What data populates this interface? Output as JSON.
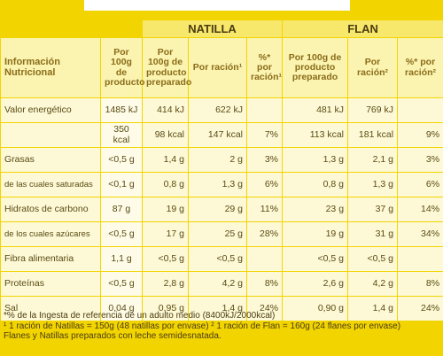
{
  "headers": {
    "natilla": "NATILLA",
    "flan": "FLAN",
    "label": "Información Nutricional",
    "cols": [
      "Por 100g de producto",
      "Por 100g de producto preparado",
      "Por ración¹",
      "%* por ración¹",
      "Por 100g de producto preparado",
      "Por ración²",
      "%* por ración²"
    ]
  },
  "rows": [
    {
      "label": "Valor energético",
      "cells": [
        "1485 kJ",
        "414 kJ",
        "622 kJ",
        "",
        "481 kJ",
        "769 kJ",
        ""
      ]
    },
    {
      "label": "",
      "cells": [
        "350 kcal",
        "98 kcal",
        "147 kcal",
        "7%",
        "113 kcal",
        "181 kcal",
        "9%"
      ]
    },
    {
      "label": "Grasas",
      "cells": [
        "<0,5 g",
        "1,4 g",
        "2 g",
        "3%",
        "1,3 g",
        "2,1 g",
        "3%"
      ]
    },
    {
      "label": "de las cuales saturadas",
      "cells": [
        "<0,1 g",
        "0,8 g",
        "1,3 g",
        "6%",
        "0,8 g",
        "1,3 g",
        "6%"
      ]
    },
    {
      "label": "Hidratos de carbono",
      "cells": [
        "87 g",
        "19 g",
        "29 g",
        "11%",
        "23 g",
        "37 g",
        "14%"
      ]
    },
    {
      "label": "de los cuales azúcares",
      "cells": [
        "<0,5 g",
        "17 g",
        "25 g",
        "28%",
        "19 g",
        "31 g",
        "34%"
      ]
    },
    {
      "label": "Fibra alimentaria",
      "cells": [
        "1,1 g",
        "<0,5 g",
        "<0,5 g",
        "",
        "<0,5 g",
        "<0,5 g",
        ""
      ]
    },
    {
      "label": "Proteínas",
      "cells": [
        "<0,5 g",
        "2,8 g",
        "4,2 g",
        "8%",
        "2,6 g",
        "4,2 g",
        "8%"
      ]
    },
    {
      "label": "Sal",
      "cells": [
        "0,04 g",
        "0,95 g",
        "1,4 g",
        "24%",
        "0,90 g",
        "1,4 g",
        "24%"
      ]
    }
  ],
  "footer": [
    "*% de la Ingesta de referencia de un adulto medio (8400kJ/2000kcal)",
    "¹ 1 ración de Natillas = 150g (48 natillas por envase) ² 1 ración de Flan = 160g (24 flanes por envase)",
    "Flanes y Natillas preparados con leche semidesnatada."
  ]
}
